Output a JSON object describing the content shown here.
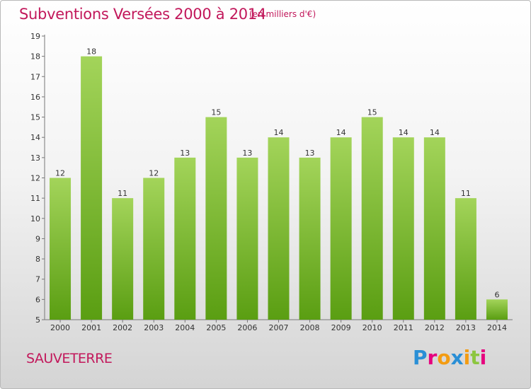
{
  "chart_data": {
    "type": "bar",
    "title": "Subventions Versées 2000 à 2014",
    "subtitle": "(en milliers d'€)",
    "categories": [
      "2000",
      "2001",
      "2002",
      "2003",
      "2004",
      "2005",
      "2006",
      "2007",
      "2008",
      "2009",
      "2010",
      "2011",
      "2012",
      "2013",
      "2014"
    ],
    "values": [
      12,
      18,
      11,
      12,
      13,
      15,
      13,
      14,
      13,
      14,
      15,
      14,
      14,
      11,
      6
    ],
    "data_labels": [
      "12",
      "18",
      "11",
      "12",
      "13",
      "15",
      "13",
      "14",
      "13",
      "14",
      "15",
      "14",
      "14",
      "11",
      "6"
    ],
    "ylim": [
      5,
      19
    ],
    "yticks": [
      5,
      6,
      7,
      8,
      9,
      10,
      11,
      12,
      13,
      14,
      15,
      16,
      17,
      18,
      19
    ],
    "ytick_labels": [
      "5",
      "6",
      "7",
      "8",
      "9",
      "10",
      "11",
      "12",
      "13",
      "14",
      "15",
      "16",
      "17",
      "18",
      "19"
    ],
    "grid": false,
    "colors": {
      "bar_top": "#a3d45a",
      "bar_bottom": "#5a9e12",
      "text_accent": "#c2185b",
      "axis": "#333333"
    }
  },
  "footer": {
    "commune": "SAUVETERRE",
    "logo": [
      "P",
      "r",
      "o",
      "x",
      "i",
      "t",
      "i"
    ],
    "logo_colors": [
      "#2a8fd6",
      "#e6007e",
      "#f39c12",
      "#2a8fd6",
      "#f39c12",
      "#8cc63f",
      "#e6007e"
    ]
  }
}
